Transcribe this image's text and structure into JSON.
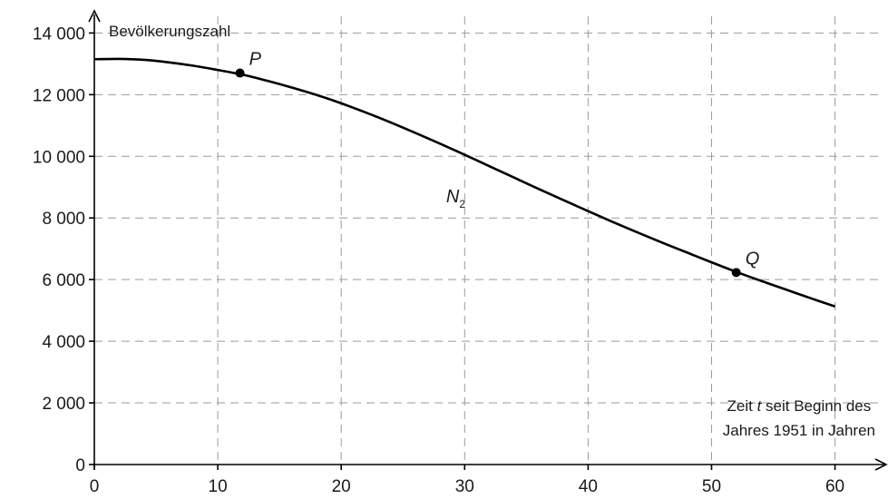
{
  "chart_data": {
    "type": "line",
    "grid": true,
    "xlim": [
      0,
      64
    ],
    "ylim": [
      0,
      14600
    ],
    "x_ticks": [
      0,
      10,
      20,
      30,
      40,
      50,
      60
    ],
    "y_ticks": [
      0,
      2000,
      4000,
      6000,
      8000,
      10000,
      12000,
      14000
    ],
    "x_tick_labels": [
      "0",
      "10",
      "20",
      "30",
      "40",
      "50",
      "60"
    ],
    "y_tick_labels": [
      "0",
      "2 000",
      "4 000",
      "6 000",
      "8 000",
      "10 000",
      "12 000",
      "14 000"
    ],
    "ylabel": "Bevölkerungszahl",
    "xlabel": {
      "line1_pre": "Zeit ",
      "line1_var": "t",
      "line1_post": " seit Beginn des",
      "line2": "Jahres 1951 in Jahren"
    },
    "series": [
      {
        "name_base": "N",
        "name_sub": "2",
        "label_x": 28.5,
        "label_y": 8500,
        "color": "#000000",
        "x": [
          0,
          2,
          4,
          6,
          8,
          10,
          12,
          14,
          16,
          18,
          20,
          22,
          24,
          26,
          28,
          30,
          32,
          34,
          36,
          38,
          40,
          42,
          44,
          46,
          48,
          50,
          52,
          54,
          56,
          58,
          60
        ],
        "y": [
          13150,
          13160,
          13130,
          13050,
          12940,
          12800,
          12650,
          12450,
          12230,
          11990,
          11720,
          11420,
          11100,
          10760,
          10410,
          10050,
          9680,
          9310,
          8940,
          8580,
          8220,
          7870,
          7530,
          7200,
          6880,
          6560,
          6250,
          5960,
          5680,
          5400,
          5130
        ]
      }
    ],
    "points": [
      {
        "label": "P",
        "x": 11.8,
        "y": 12700
      },
      {
        "label": "Q",
        "x": 52,
        "y": 6230
      }
    ]
  }
}
